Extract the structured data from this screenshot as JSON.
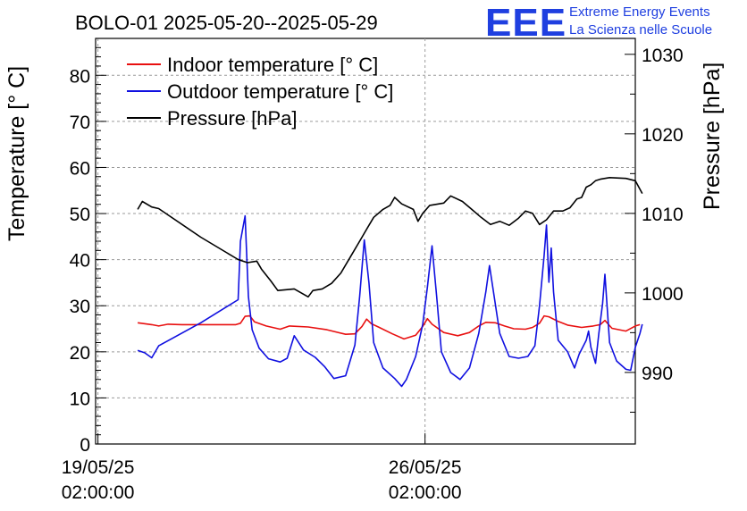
{
  "title": "BOLO-01 2025-05-20--2025-05-29",
  "logo": {
    "mark": "EEE",
    "line1": "Extreme Energy Events",
    "line2": "La Scienza nelle Scuole"
  },
  "chart_data": {
    "type": "line",
    "title": "BOLO-01 2025-05-20--2025-05-29",
    "xlabel": "",
    "ylabel_left": "Temperature [° C]",
    "ylabel_right": "Pressure [hPa]",
    "x_range_days": [
      -0.05,
      11.5
    ],
    "ylim_left": [
      0,
      88
    ],
    "ylim_right": [
      981,
      1032
    ],
    "grid": true,
    "legend_position": "top-left",
    "x_ticks": [
      {
        "day": 0,
        "date": "19/05/25",
        "time": "02:00:00"
      },
      {
        "day": 7,
        "date": "26/05/25",
        "time": "02:00:00"
      }
    ],
    "y_ticks_left": [
      0,
      10,
      20,
      30,
      40,
      50,
      60,
      70,
      80
    ],
    "y_ticks_right": [
      990,
      1000,
      1010,
      1020,
      1030
    ],
    "series": [
      {
        "name": "Indoor temperature [° C]",
        "color": "#e81010",
        "axis": "left",
        "points": [
          [
            0.85,
            26.3
          ],
          [
            1.15,
            25.9
          ],
          [
            1.3,
            25.6
          ],
          [
            1.5,
            26.0
          ],
          [
            1.8,
            25.9
          ],
          [
            2.5,
            25.9
          ],
          [
            2.95,
            25.9
          ],
          [
            3.05,
            26.2
          ],
          [
            3.15,
            27.7
          ],
          [
            3.25,
            27.8
          ],
          [
            3.35,
            26.5
          ],
          [
            3.6,
            25.6
          ],
          [
            3.9,
            24.9
          ],
          [
            4.1,
            25.6
          ],
          [
            4.5,
            25.4
          ],
          [
            4.9,
            24.8
          ],
          [
            5.3,
            23.8
          ],
          [
            5.5,
            23.9
          ],
          [
            5.65,
            25.5
          ],
          [
            5.75,
            27.1
          ],
          [
            5.85,
            26.1
          ],
          [
            6.0,
            25.4
          ],
          [
            6.3,
            23.9
          ],
          [
            6.55,
            22.8
          ],
          [
            6.8,
            23.6
          ],
          [
            6.95,
            25.5
          ],
          [
            7.05,
            27.2
          ],
          [
            7.15,
            26.0
          ],
          [
            7.4,
            24.2
          ],
          [
            7.7,
            23.5
          ],
          [
            7.95,
            24.2
          ],
          [
            8.15,
            25.6
          ],
          [
            8.3,
            26.4
          ],
          [
            8.5,
            26.3
          ],
          [
            8.7,
            25.6
          ],
          [
            8.9,
            25.0
          ],
          [
            9.15,
            24.9
          ],
          [
            9.3,
            25.3
          ],
          [
            9.45,
            26.2
          ],
          [
            9.55,
            27.8
          ],
          [
            9.65,
            27.6
          ],
          [
            9.85,
            26.6
          ],
          [
            10.05,
            25.8
          ],
          [
            10.35,
            25.3
          ],
          [
            10.6,
            25.6
          ],
          [
            10.75,
            25.9
          ],
          [
            10.85,
            26.8
          ],
          [
            11.0,
            25.1
          ],
          [
            11.3,
            24.5
          ],
          [
            11.5,
            25.6
          ],
          [
            11.6,
            25.9
          ]
        ]
      },
      {
        "name": "Outdoor temperature [° C]",
        "color": "#1010e0",
        "axis": "left",
        "points": [
          [
            0.85,
            20.3
          ],
          [
            1.0,
            19.8
          ],
          [
            1.15,
            18.7
          ],
          [
            1.3,
            21.3
          ],
          [
            2.2,
            26.3
          ],
          [
            3.0,
            31.3
          ],
          [
            3.05,
            44.0
          ],
          [
            3.15,
            49.5
          ],
          [
            3.22,
            32.0
          ],
          [
            3.3,
            24.8
          ],
          [
            3.45,
            20.8
          ],
          [
            3.65,
            18.5
          ],
          [
            3.9,
            17.8
          ],
          [
            4.05,
            18.6
          ],
          [
            4.2,
            23.5
          ],
          [
            4.4,
            20.4
          ],
          [
            4.65,
            18.8
          ],
          [
            4.85,
            16.8
          ],
          [
            5.05,
            14.2
          ],
          [
            5.3,
            14.8
          ],
          [
            5.5,
            21.5
          ],
          [
            5.6,
            32.0
          ],
          [
            5.7,
            44.3
          ],
          [
            5.8,
            35.0
          ],
          [
            5.9,
            22.0
          ],
          [
            6.1,
            16.5
          ],
          [
            6.35,
            14.2
          ],
          [
            6.5,
            12.5
          ],
          [
            6.6,
            14.0
          ],
          [
            6.8,
            19.0
          ],
          [
            6.95,
            26.0
          ],
          [
            7.05,
            34.0
          ],
          [
            7.15,
            43.0
          ],
          [
            7.25,
            32.0
          ],
          [
            7.35,
            20.0
          ],
          [
            7.55,
            15.5
          ],
          [
            7.75,
            14.0
          ],
          [
            7.95,
            16.5
          ],
          [
            8.15,
            24.0
          ],
          [
            8.3,
            33.0
          ],
          [
            8.38,
            38.7
          ],
          [
            8.45,
            34.0
          ],
          [
            8.6,
            24.0
          ],
          [
            8.8,
            19.0
          ],
          [
            9.0,
            18.6
          ],
          [
            9.2,
            19.0
          ],
          [
            9.35,
            21.3
          ],
          [
            9.45,
            30.0
          ],
          [
            9.55,
            41.0
          ],
          [
            9.6,
            47.5
          ],
          [
            9.65,
            35.1
          ],
          [
            9.7,
            42.5
          ],
          [
            9.75,
            33.0
          ],
          [
            9.85,
            22.5
          ],
          [
            10.05,
            20.0
          ],
          [
            10.2,
            16.5
          ],
          [
            10.3,
            19.5
          ],
          [
            10.45,
            22.5
          ],
          [
            10.5,
            24.5
          ],
          [
            10.55,
            21.0
          ],
          [
            10.65,
            17.5
          ],
          [
            10.72,
            24.0
          ],
          [
            10.8,
            30.5
          ],
          [
            10.85,
            36.8
          ],
          [
            10.95,
            22.0
          ],
          [
            11.1,
            18.0
          ],
          [
            11.3,
            16.2
          ],
          [
            11.4,
            16.0
          ],
          [
            11.5,
            21.0
          ],
          [
            11.6,
            24.0
          ],
          [
            11.65,
            26.0
          ]
        ]
      },
      {
        "name": "Pressure [hPa]",
        "color": "#000000",
        "axis": "right",
        "points": [
          [
            0.85,
            1010.5
          ],
          [
            0.95,
            1011.5
          ],
          [
            1.15,
            1010.8
          ],
          [
            1.3,
            1010.6
          ],
          [
            2.2,
            1007.0
          ],
          [
            3.0,
            1004.2
          ],
          [
            3.2,
            1003.8
          ],
          [
            3.4,
            1004.0
          ],
          [
            3.5,
            1003.0
          ],
          [
            3.7,
            1001.5
          ],
          [
            3.85,
            1000.3
          ],
          [
            4.2,
            1000.5
          ],
          [
            4.5,
            999.5
          ],
          [
            4.6,
            1000.3
          ],
          [
            4.8,
            1000.5
          ],
          [
            5.0,
            1001.2
          ],
          [
            5.2,
            1002.5
          ],
          [
            5.4,
            1004.5
          ],
          [
            5.6,
            1006.5
          ],
          [
            5.75,
            1008.0
          ],
          [
            5.9,
            1009.5
          ],
          [
            6.1,
            1010.5
          ],
          [
            6.25,
            1011.0
          ],
          [
            6.35,
            1012.0
          ],
          [
            6.5,
            1011.2
          ],
          [
            6.75,
            1010.5
          ],
          [
            6.85,
            1009.0
          ],
          [
            6.95,
            1010.0
          ],
          [
            7.1,
            1011.0
          ],
          [
            7.4,
            1011.3
          ],
          [
            7.55,
            1012.2
          ],
          [
            7.8,
            1011.5
          ],
          [
            8.0,
            1010.5
          ],
          [
            8.2,
            1009.5
          ],
          [
            8.4,
            1008.6
          ],
          [
            8.6,
            1009.0
          ],
          [
            8.8,
            1008.5
          ],
          [
            9.0,
            1009.4
          ],
          [
            9.15,
            1010.3
          ],
          [
            9.3,
            1010.0
          ],
          [
            9.45,
            1008.6
          ],
          [
            9.6,
            1009.2
          ],
          [
            9.75,
            1010.3
          ],
          [
            9.95,
            1010.3
          ],
          [
            10.1,
            1010.7
          ],
          [
            10.25,
            1011.8
          ],
          [
            10.35,
            1012.0
          ],
          [
            10.45,
            1013.3
          ],
          [
            10.55,
            1013.6
          ],
          [
            10.65,
            1014.1
          ],
          [
            10.75,
            1014.3
          ],
          [
            10.95,
            1014.5
          ],
          [
            11.3,
            1014.4
          ],
          [
            11.5,
            1014.1
          ],
          [
            11.65,
            1012.5
          ]
        ]
      }
    ]
  }
}
